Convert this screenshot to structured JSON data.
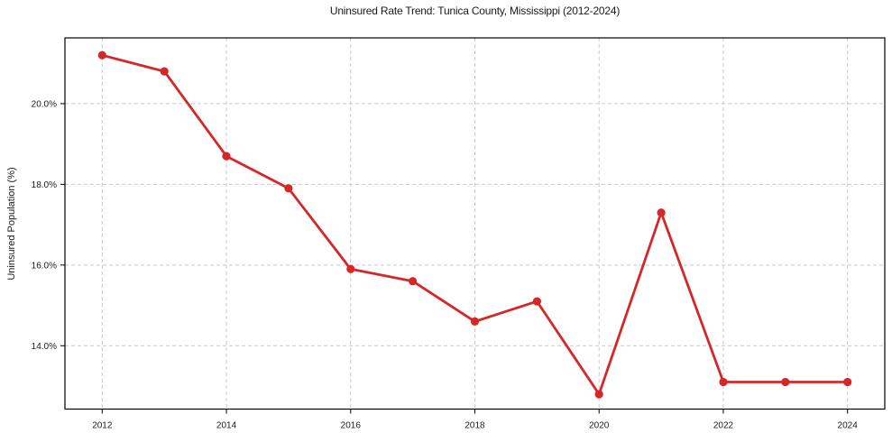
{
  "chart_data": {
    "type": "line",
    "title": "Uninsured Rate Trend: Tunica County, Mississippi (2012-2024)",
    "xlabel": "",
    "ylabel": "Uninsured Population (%)",
    "x": [
      2012,
      2013,
      2014,
      2015,
      2016,
      2017,
      2018,
      2019,
      2020,
      2021,
      2022,
      2023,
      2024
    ],
    "series": [
      {
        "name": "Uninsured Population (%)",
        "values": [
          21.2,
          20.8,
          18.7,
          17.9,
          15.9,
          15.6,
          14.6,
          15.1,
          12.8,
          17.3,
          13.1,
          13.1,
          13.1
        ]
      }
    ],
    "x_tick_values": [
      2012,
      2014,
      2016,
      2018,
      2020,
      2022,
      2024
    ],
    "x_tick_labels": [
      "2012",
      "2014",
      "2016",
      "2018",
      "2020",
      "2022",
      "2024"
    ],
    "y_tick_values": [
      14,
      16,
      18,
      20
    ],
    "y_tick_labels": [
      "14.0%",
      "16.0%",
      "18.0%",
      "20.0%"
    ],
    "xlim": [
      2011.4,
      2024.6
    ],
    "ylim": [
      12.43,
      21.63
    ],
    "grid": true,
    "grid_style": "dashed",
    "legend_position": "none",
    "marker": "circle",
    "colors": {
      "line": "#d62728",
      "marker": "#d62728",
      "grid": "#c9c9c9",
      "spine": "#000000",
      "text": "#1a1a1a",
      "background": "#ffffff"
    }
  }
}
